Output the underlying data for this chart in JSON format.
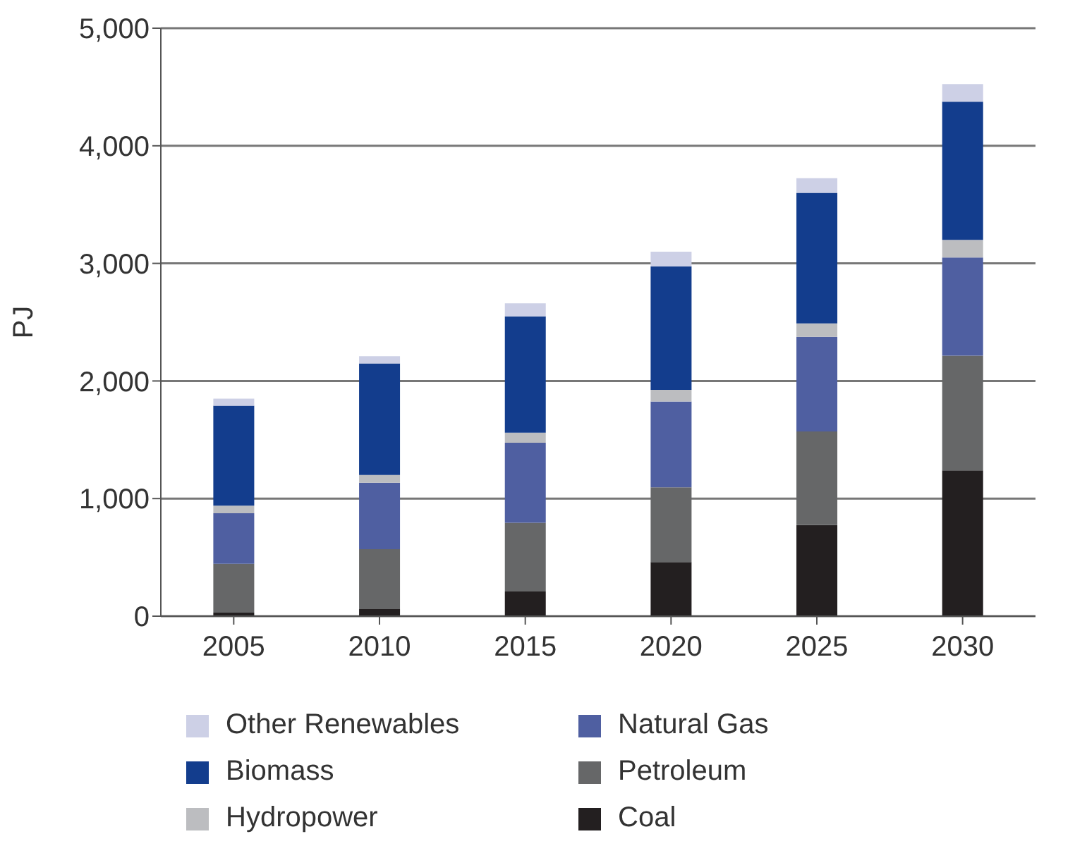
{
  "chart_data": {
    "type": "bar",
    "stacked": true,
    "ylabel": "PJ",
    "categories": [
      "2005",
      "2010",
      "2015",
      "2020",
      "2025",
      "2030"
    ],
    "series": [
      {
        "name": "Coal",
        "color": "#231f20",
        "values": [
          30,
          60,
          210,
          460,
          775,
          1240
        ]
      },
      {
        "name": "Petroleum",
        "color": "#666768",
        "values": [
          415,
          510,
          585,
          635,
          795,
          975
        ]
      },
      {
        "name": "Natural Gas",
        "color": "#4f5fa1",
        "values": [
          430,
          565,
          680,
          730,
          805,
          835
        ]
      },
      {
        "name": "Hydropower",
        "color": "#bcbdc0",
        "values": [
          65,
          65,
          85,
          100,
          115,
          150
        ]
      },
      {
        "name": "Biomass",
        "color": "#133d8d",
        "values": [
          850,
          950,
          990,
          1050,
          1110,
          1175
        ]
      },
      {
        "name": "Other Renewables",
        "color": "#cdd0e6",
        "values": [
          60,
          60,
          110,
          125,
          125,
          150
        ]
      }
    ],
    "ylim": [
      0,
      5000
    ],
    "yticks": [
      {
        "value": 0,
        "label": "0"
      },
      {
        "value": 1000,
        "label": "1,000"
      },
      {
        "value": 2000,
        "label": "2,000"
      },
      {
        "value": 3000,
        "label": "3,000"
      },
      {
        "value": 4000,
        "label": "4,000"
      },
      {
        "value": 5000,
        "label": "5,000"
      }
    ],
    "grid": "y",
    "legend": "bottom"
  }
}
